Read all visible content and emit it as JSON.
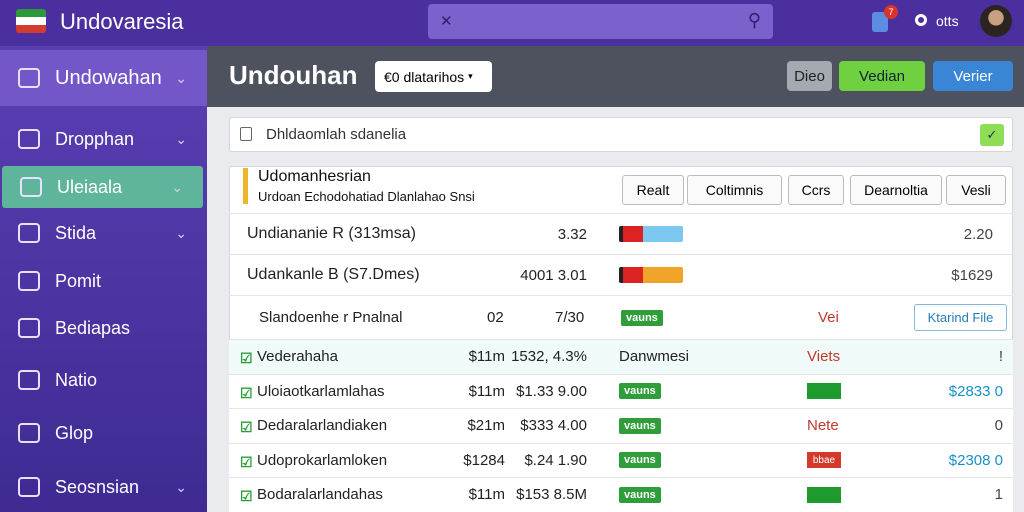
{
  "topbar": {
    "title": "Undovaresia",
    "badge": "7",
    "user": "otts"
  },
  "sidebar": {
    "header": "Undowahan",
    "items": [
      "Dropphan",
      "Uleiaala",
      "Stida",
      "Pomit",
      "Bediapas",
      "Natio",
      "Glop",
      "Seosnsian"
    ]
  },
  "header": {
    "title": "Undouhan",
    "dropdown": "€0 dlatarihos",
    "buttons": [
      "Dieo",
      "Vedian",
      "Verier"
    ]
  },
  "search": {
    "placeholder": "Dhldaomlah sdanelia"
  },
  "card": {
    "title": "Udomanhesrian",
    "subtitle": "Urdoan Echodohatiad Dlanlahao Snsi",
    "buttons": [
      "Realt",
      "Coltimnis",
      "Ccrs",
      "Dearnoltia",
      "Vesli"
    ],
    "summary": [
      {
        "label": "Undiananie R (313msa)",
        "value": "3.32",
        "end": "2.20"
      },
      {
        "label": "Udankanle B (S7.Dmes)",
        "value": "4001 3.01",
        "end": "$1629"
      }
    ],
    "detail": {
      "label": "Slandoenhe r Pnalnal",
      "a": "02",
      "b": "7/30",
      "tag": "vauns",
      "status": "Vei",
      "action": "Ktarind File"
    },
    "rows": [
      {
        "name": "Vederahaha",
        "amount": "$11m",
        "change": "1532, 4.3%",
        "tag": "Danwmesi",
        "status": "Viets",
        "end": "!"
      },
      {
        "name": "Uloiaotkarlamlahas",
        "amount": "$11m",
        "change": "$1.33 9.00",
        "tag": "vauns",
        "status_color": "#1e9a2e",
        "end": "$2833 0"
      },
      {
        "name": "Dedaralarlandiaken",
        "amount": "$21m",
        "change": "$333 4.00",
        "tag": "vauns",
        "status": "Nete",
        "end": "0"
      },
      {
        "name": "Udoprokarlamloken",
        "amount": "$1284",
        "change": "$.24 1.90",
        "tag": "vauns",
        "status": "bbae",
        "status_color": "#d33a2c",
        "end": "$2308 0"
      },
      {
        "name": "Bodaralarlandahas",
        "amount": "$11m",
        "change": "$153 8.5M",
        "tag": "vauns",
        "status_color": "#1e9a2e",
        "end": "1"
      }
    ]
  }
}
